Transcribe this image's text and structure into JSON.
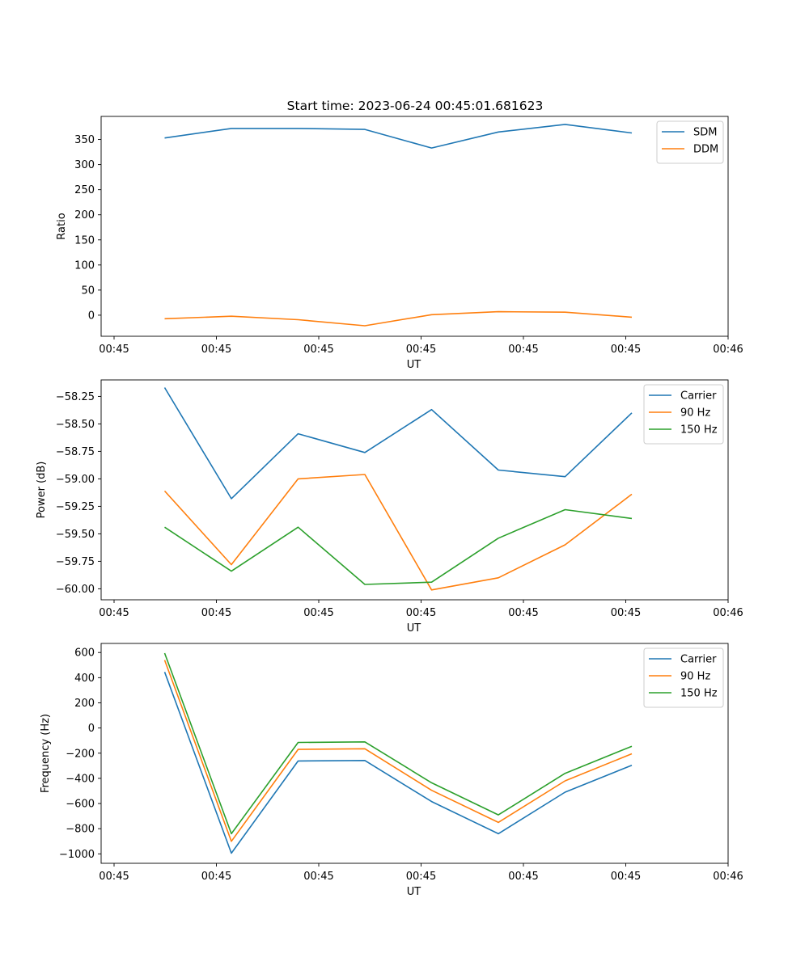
{
  "figure": {
    "title": "Start time: 2023-06-24 00:45:01.681623"
  },
  "chart_data": [
    {
      "type": "line",
      "title": "",
      "xlabel": "UT",
      "ylabel": "Ratio",
      "x": [
        "00:45",
        "00:45",
        "00:45",
        "00:45",
        "00:45",
        "00:45",
        "00:45",
        "00:45"
      ],
      "xticks": [
        "00:45",
        "00:45",
        "00:45",
        "00:45",
        "00:45",
        "00:45",
        "00:46"
      ],
      "yticks": [
        0,
        50,
        100,
        150,
        200,
        250,
        300,
        350
      ],
      "ylim": [
        -42,
        396
      ],
      "grid": false,
      "legend": "top-right",
      "series": [
        {
          "name": "SDM",
          "color": "#1f77b4",
          "values": [
            353,
            372,
            372,
            370,
            333,
            365,
            380,
            363
          ]
        },
        {
          "name": "DDM",
          "color": "#ff7f0e",
          "values": [
            -7,
            -2,
            -9,
            -21,
            1,
            7,
            6,
            -4
          ]
        }
      ]
    },
    {
      "type": "line",
      "title": "",
      "xlabel": "UT",
      "ylabel": "Power (dB)",
      "x": [
        "00:45",
        "00:45",
        "00:45",
        "00:45",
        "00:45",
        "00:45",
        "00:45",
        "00:45"
      ],
      "xticks": [
        "00:45",
        "00:45",
        "00:45",
        "00:45",
        "00:45",
        "00:45",
        "00:46"
      ],
      "yticks": [
        -60.0,
        -59.75,
        -59.5,
        -59.25,
        -59.0,
        -58.75,
        -58.5,
        -58.25
      ],
      "ytick_labels": [
        "−60.00",
        "−59.75",
        "−59.50",
        "−59.25",
        "−59.00",
        "−58.75",
        "−58.50",
        "−58.25"
      ],
      "ylim": [
        -60.1,
        -58.1
      ],
      "grid": false,
      "legend": "top-right",
      "series": [
        {
          "name": "Carrier",
          "color": "#1f77b4",
          "values": [
            -58.17,
            -59.18,
            -58.59,
            -58.76,
            -58.37,
            -58.92,
            -58.98,
            -58.4
          ]
        },
        {
          "name": "90 Hz",
          "color": "#ff7f0e",
          "values": [
            -59.11,
            -59.78,
            -59.0,
            -58.96,
            -60.01,
            -59.9,
            -59.6,
            -59.14
          ]
        },
        {
          "name": "150 Hz",
          "color": "#2ca02c",
          "values": [
            -59.44,
            -59.84,
            -59.44,
            -59.96,
            -59.94,
            -59.54,
            -59.28,
            -59.36
          ]
        }
      ]
    },
    {
      "type": "line",
      "title": "",
      "xlabel": "UT",
      "ylabel": "Frequency (Hz)",
      "x": [
        "00:45",
        "00:45",
        "00:45",
        "00:45",
        "00:45",
        "00:45",
        "00:45",
        "00:45"
      ],
      "xticks": [
        "00:45",
        "00:45",
        "00:45",
        "00:45",
        "00:45",
        "00:45",
        "00:46"
      ],
      "yticks": [
        -1000,
        -800,
        -600,
        -400,
        -200,
        0,
        200,
        400,
        600
      ],
      "ytick_labels": [
        "−1000",
        "−800",
        "−600",
        "−400",
        "−200",
        "0",
        "200",
        "400",
        "600"
      ],
      "ylim": [
        -1075,
        672
      ],
      "grid": false,
      "legend": "top-right",
      "series": [
        {
          "name": "Carrier",
          "color": "#1f77b4",
          "values": [
            445,
            -995,
            -262,
            -258,
            -584,
            -840,
            -510,
            -296
          ]
        },
        {
          "name": "90 Hz",
          "color": "#ff7f0e",
          "values": [
            540,
            -900,
            -170,
            -165,
            -495,
            -750,
            -420,
            -205
          ]
        },
        {
          "name": "150 Hz",
          "color": "#2ca02c",
          "values": [
            595,
            -840,
            -115,
            -110,
            -435,
            -690,
            -360,
            -145
          ]
        }
      ]
    }
  ]
}
